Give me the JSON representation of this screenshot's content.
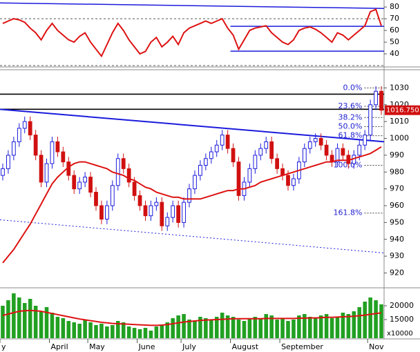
{
  "chart_data": [
    {
      "type": "line",
      "ylim": [
        30,
        86
      ],
      "yticks": [
        40,
        50,
        60,
        70,
        80
      ],
      "guides": [
        70,
        30
      ],
      "series": [
        {
          "color": "#dd1111",
          "values": [
            66,
            68,
            70,
            69,
            67,
            62,
            58,
            52,
            60,
            66,
            60,
            56,
            52,
            50,
            55,
            58,
            50,
            44,
            38,
            48,
            58,
            66,
            60,
            52,
            46,
            40,
            42,
            50,
            54,
            46,
            50,
            55,
            48,
            58,
            62,
            64,
            66,
            68,
            66,
            68,
            70,
            62,
            56,
            44,
            52,
            60,
            62,
            63,
            64,
            58,
            54,
            50,
            48,
            52,
            60,
            62,
            63,
            61,
            58,
            54,
            50,
            58,
            56,
            52,
            56,
            60,
            64,
            76,
            78,
            64
          ]
        }
      ],
      "lines": [
        {
          "start": 0,
          "from": 83.5,
          "to": 78.8,
          "color": "#1a1adc"
        },
        {
          "start": 42,
          "from": 63.5,
          "to": 63.5,
          "color": "#1a1adc"
        },
        {
          "start": 42,
          "from": 42.3,
          "to": 42.3,
          "color": "#1a1adc"
        }
      ]
    },
    {
      "type": "candlestick",
      "ylim": [
        912,
        1040
      ],
      "yticks": [
        920,
        930,
        940,
        950,
        960,
        970,
        980,
        990,
        1000,
        1010,
        1020,
        1030
      ],
      "up_color": "#1a1adc",
      "down_color": "#d01010",
      "open": [
        978,
        982,
        990,
        998,
        1006,
        1010,
        1002,
        990,
        974,
        985,
        998,
        992,
        986,
        978,
        970,
        974,
        977,
        968,
        960,
        952,
        960,
        972,
        988,
        982,
        974,
        966,
        960,
        954,
        960,
        962,
        948,
        953,
        960,
        950,
        962,
        970,
        978,
        984,
        988,
        992,
        996,
        1002,
        994,
        986,
        966,
        974,
        982,
        990,
        994,
        998,
        988,
        982,
        978,
        972,
        976,
        986,
        994,
        998,
        1000,
        996,
        990,
        986,
        994,
        990,
        985,
        990,
        996,
        1002,
        1020,
        1028
      ],
      "high": [
        985,
        993,
        1001,
        1009,
        1013,
        1013,
        1005,
        993,
        988,
        1001,
        1001,
        995,
        989,
        981,
        977,
        980,
        980,
        971,
        963,
        963,
        975,
        991,
        991,
        985,
        977,
        969,
        963,
        963,
        965,
        965,
        956,
        963,
        963,
        965,
        973,
        981,
        987,
        991,
        995,
        999,
        1005,
        1005,
        997,
        989,
        977,
        985,
        993,
        997,
        1001,
        1001,
        991,
        985,
        981,
        979,
        989,
        997,
        1001,
        1003,
        1003,
        999,
        993,
        997,
        997,
        993,
        993,
        999,
        1005,
        1023,
        1031,
        1031
      ],
      "low": [
        975,
        979,
        987,
        995,
        1003,
        999,
        987,
        971,
        971,
        982,
        989,
        983,
        975,
        967,
        967,
        971,
        965,
        957,
        949,
        949,
        957,
        969,
        979,
        971,
        963,
        957,
        951,
        951,
        957,
        945,
        945,
        950,
        947,
        947,
        959,
        967,
        975,
        981,
        985,
        989,
        993,
        991,
        983,
        963,
        963,
        971,
        979,
        987,
        991,
        985,
        979,
        975,
        969,
        969,
        973,
        983,
        991,
        995,
        993,
        987,
        983,
        983,
        987,
        982,
        982,
        987,
        993,
        999,
        1017,
        1014
      ],
      "close": [
        982,
        990,
        998,
        1006,
        1010,
        1002,
        990,
        974,
        985,
        998,
        992,
        986,
        978,
        970,
        974,
        977,
        968,
        960,
        952,
        960,
        972,
        988,
        982,
        974,
        966,
        960,
        954,
        960,
        962,
        948,
        953,
        960,
        950,
        962,
        970,
        978,
        984,
        988,
        992,
        996,
        1002,
        994,
        986,
        966,
        974,
        982,
        990,
        994,
        998,
        988,
        982,
        978,
        972,
        976,
        986,
        994,
        998,
        1000,
        996,
        990,
        986,
        994,
        990,
        985,
        990,
        996,
        1002,
        1020,
        1028,
        1016.75
      ],
      "series": [
        {
          "color": "#dd1111",
          "values": [
            926,
            930,
            934,
            939,
            944,
            949,
            955,
            961,
            967,
            973,
            977,
            980,
            983,
            985,
            986,
            986,
            985,
            984,
            983,
            982,
            980,
            979,
            978,
            976,
            975,
            973,
            971,
            970,
            968,
            967,
            966,
            965,
            965,
            964,
            964,
            964,
            964,
            965,
            966,
            967,
            968,
            969,
            969,
            970,
            970,
            971,
            972,
            974,
            975,
            976,
            977,
            978,
            979,
            980,
            981,
            982,
            983,
            984,
            985,
            986,
            986,
            987,
            987,
            987,
            988,
            989,
            990,
            991,
            993,
            995
          ]
        }
      ],
      "trendlines": [
        {
          "from": 1017.3,
          "to": 998,
          "color": "#1a1adc",
          "dashed": false
        },
        {
          "from": 951.6,
          "to": 931.9,
          "color": "#1a1adc",
          "dashed": true
        }
      ],
      "hlines": [
        1026.3,
        1017.3
      ],
      "fib_start": 62,
      "fib": [
        {
          "value": 1030,
          "label": "0.0%"
        },
        {
          "value": 1019.1,
          "label": "23.6%"
        },
        {
          "value": 1012.4,
          "label": "38.2%"
        },
        {
          "value": 1007,
          "label": "50.0%"
        },
        {
          "value": 1001.6,
          "label": "61.8%"
        },
        {
          "value": 984,
          "label": "100.0%"
        },
        {
          "value": 955.6,
          "label": "161.8%"
        }
      ],
      "last_price": 1016.75,
      "last_price_label": "1016.750"
    },
    {
      "type": "bar",
      "ylim": [
        8250,
        25750
      ],
      "yticks": [
        15000,
        20000
      ],
      "unit_label": "x10000",
      "color": "#22a022",
      "categories": [
        "y",
        null,
        null,
        null,
        null,
        null,
        null,
        null,
        null,
        "April",
        null,
        null,
        null,
        null,
        null,
        null,
        "May",
        null,
        null,
        null,
        null,
        null,
        null,
        null,
        null,
        "June",
        null,
        null,
        null,
        null,
        null,
        null,
        null,
        "July",
        null,
        null,
        null,
        null,
        null,
        null,
        null,
        null,
        "August",
        null,
        null,
        null,
        null,
        null,
        null,
        null,
        null,
        "September",
        null,
        null,
        null,
        null,
        null,
        null,
        null,
        null,
        null,
        null,
        null,
        null,
        null,
        null,
        null,
        "Nov",
        null,
        null
      ],
      "values": [
        20000,
        22000,
        24500,
        23000,
        21000,
        22500,
        20000,
        18000,
        19500,
        17500,
        16000,
        15500,
        14500,
        14000,
        13500,
        15000,
        14000,
        13000,
        13500,
        12500,
        13000,
        14500,
        14000,
        12500,
        12000,
        11500,
        12000,
        11000,
        12500,
        13000,
        14000,
        15500,
        16500,
        17000,
        15000,
        14500,
        16000,
        15500,
        15000,
        16000,
        17500,
        16500,
        16000,
        15000,
        14500,
        15500,
        16000,
        15500,
        17000,
        16500,
        15000,
        15500,
        14500,
        15000,
        16500,
        17000,
        16000,
        15500,
        16500,
        17000,
        15500,
        16000,
        17500,
        17000,
        18000,
        19500,
        21500,
        23000,
        22000,
        20500
      ],
      "series": [
        {
          "color": "#dd1111",
          "values": [
            16500,
            17000,
            17500,
            18000,
            18200,
            18300,
            18200,
            18000,
            17600,
            17200,
            16800,
            16400,
            16000,
            15600,
            15200,
            14900,
            14600,
            14300,
            14000,
            13800,
            13600,
            13500,
            13400,
            13300,
            13200,
            13100,
            13000,
            12900,
            12900,
            13000,
            13200,
            13500,
            13800,
            14100,
            14300,
            14500,
            14700,
            14800,
            14900,
            15000,
            15100,
            15200,
            15300,
            15300,
            15300,
            15300,
            15300,
            15300,
            15400,
            15400,
            15400,
            15400,
            15400,
            15400,
            15500,
            15500,
            15600,
            15600,
            15700,
            15800,
            15800,
            15900,
            16000,
            16100,
            16200,
            16400,
            16600,
            16900,
            17200,
            17400
          ]
        }
      ]
    }
  ]
}
